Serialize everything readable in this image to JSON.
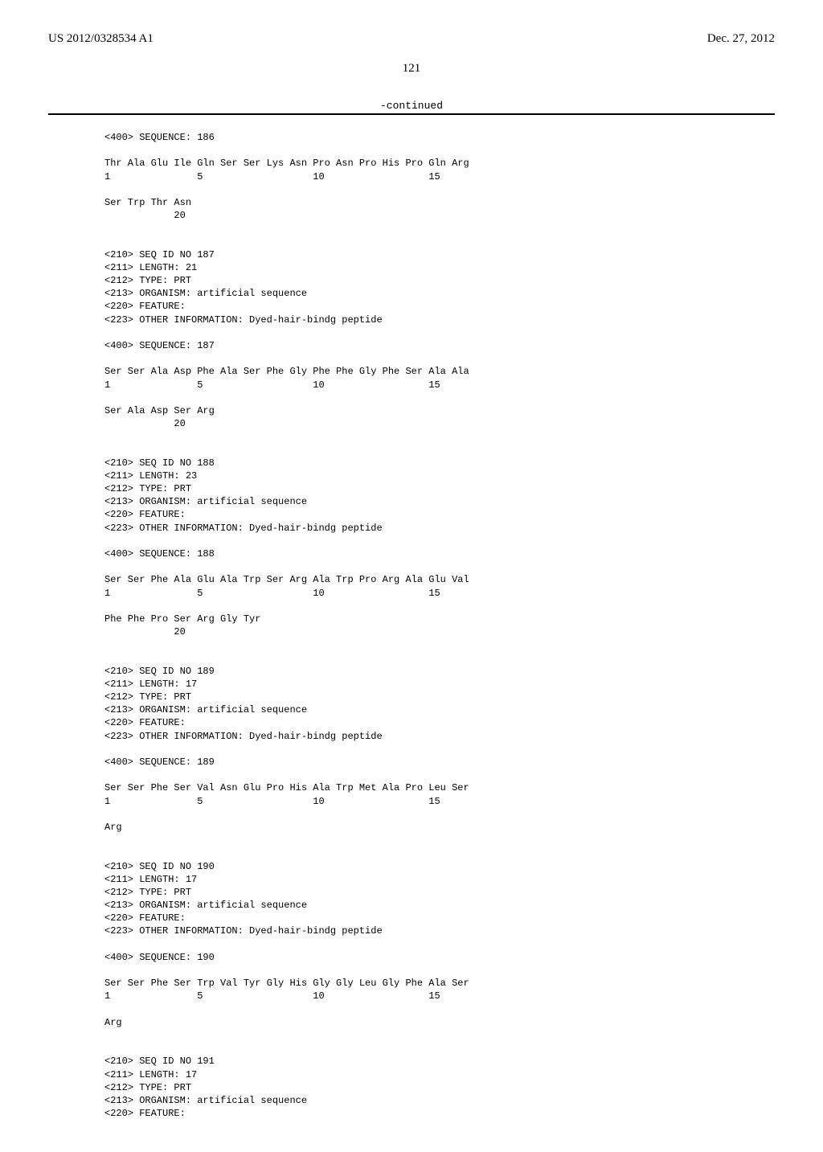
{
  "header": {
    "pub_number": "US 2012/0328534 A1",
    "pub_date": "Dec. 27, 2012"
  },
  "page_number": "121",
  "continued_label": "-continued",
  "blocks": [
    {
      "lines": [
        "<400> SEQUENCE: 186",
        "",
        "Thr Ala Glu Ile Gln Ser Ser Lys Asn Pro Asn Pro His Pro Gln Arg",
        "1               5                   10                  15",
        "",
        "Ser Trp Thr Asn",
        "            20",
        "",
        "",
        "<210> SEQ ID NO 187",
        "<211> LENGTH: 21",
        "<212> TYPE: PRT",
        "<213> ORGANISM: artificial sequence",
        "<220> FEATURE:",
        "<223> OTHER INFORMATION: Dyed-hair-bindg peptide",
        "",
        "<400> SEQUENCE: 187",
        "",
        "Ser Ser Ala Asp Phe Ala Ser Phe Gly Phe Phe Gly Phe Ser Ala Ala",
        "1               5                   10                  15",
        "",
        "Ser Ala Asp Ser Arg",
        "            20",
        "",
        "",
        "<210> SEQ ID NO 188",
        "<211> LENGTH: 23",
        "<212> TYPE: PRT",
        "<213> ORGANISM: artificial sequence",
        "<220> FEATURE:",
        "<223> OTHER INFORMATION: Dyed-hair-bindg peptide",
        "",
        "<400> SEQUENCE: 188",
        "",
        "Ser Ser Phe Ala Glu Ala Trp Ser Arg Ala Trp Pro Arg Ala Glu Val",
        "1               5                   10                  15",
        "",
        "Phe Phe Pro Ser Arg Gly Tyr",
        "            20",
        "",
        "",
        "<210> SEQ ID NO 189",
        "<211> LENGTH: 17",
        "<212> TYPE: PRT",
        "<213> ORGANISM: artificial sequence",
        "<220> FEATURE:",
        "<223> OTHER INFORMATION: Dyed-hair-bindg peptide",
        "",
        "<400> SEQUENCE: 189",
        "",
        "Ser Ser Phe Ser Val Asn Glu Pro His Ala Trp Met Ala Pro Leu Ser",
        "1               5                   10                  15",
        "",
        "Arg",
        "",
        "",
        "<210> SEQ ID NO 190",
        "<211> LENGTH: 17",
        "<212> TYPE: PRT",
        "<213> ORGANISM: artificial sequence",
        "<220> FEATURE:",
        "<223> OTHER INFORMATION: Dyed-hair-bindg peptide",
        "",
        "<400> SEQUENCE: 190",
        "",
        "Ser Ser Phe Ser Trp Val Tyr Gly His Gly Gly Leu Gly Phe Ala Ser",
        "1               5                   10                  15",
        "",
        "Arg",
        "",
        "",
        "<210> SEQ ID NO 191",
        "<211> LENGTH: 17",
        "<212> TYPE: PRT",
        "<213> ORGANISM: artificial sequence",
        "<220> FEATURE:"
      ]
    }
  ]
}
